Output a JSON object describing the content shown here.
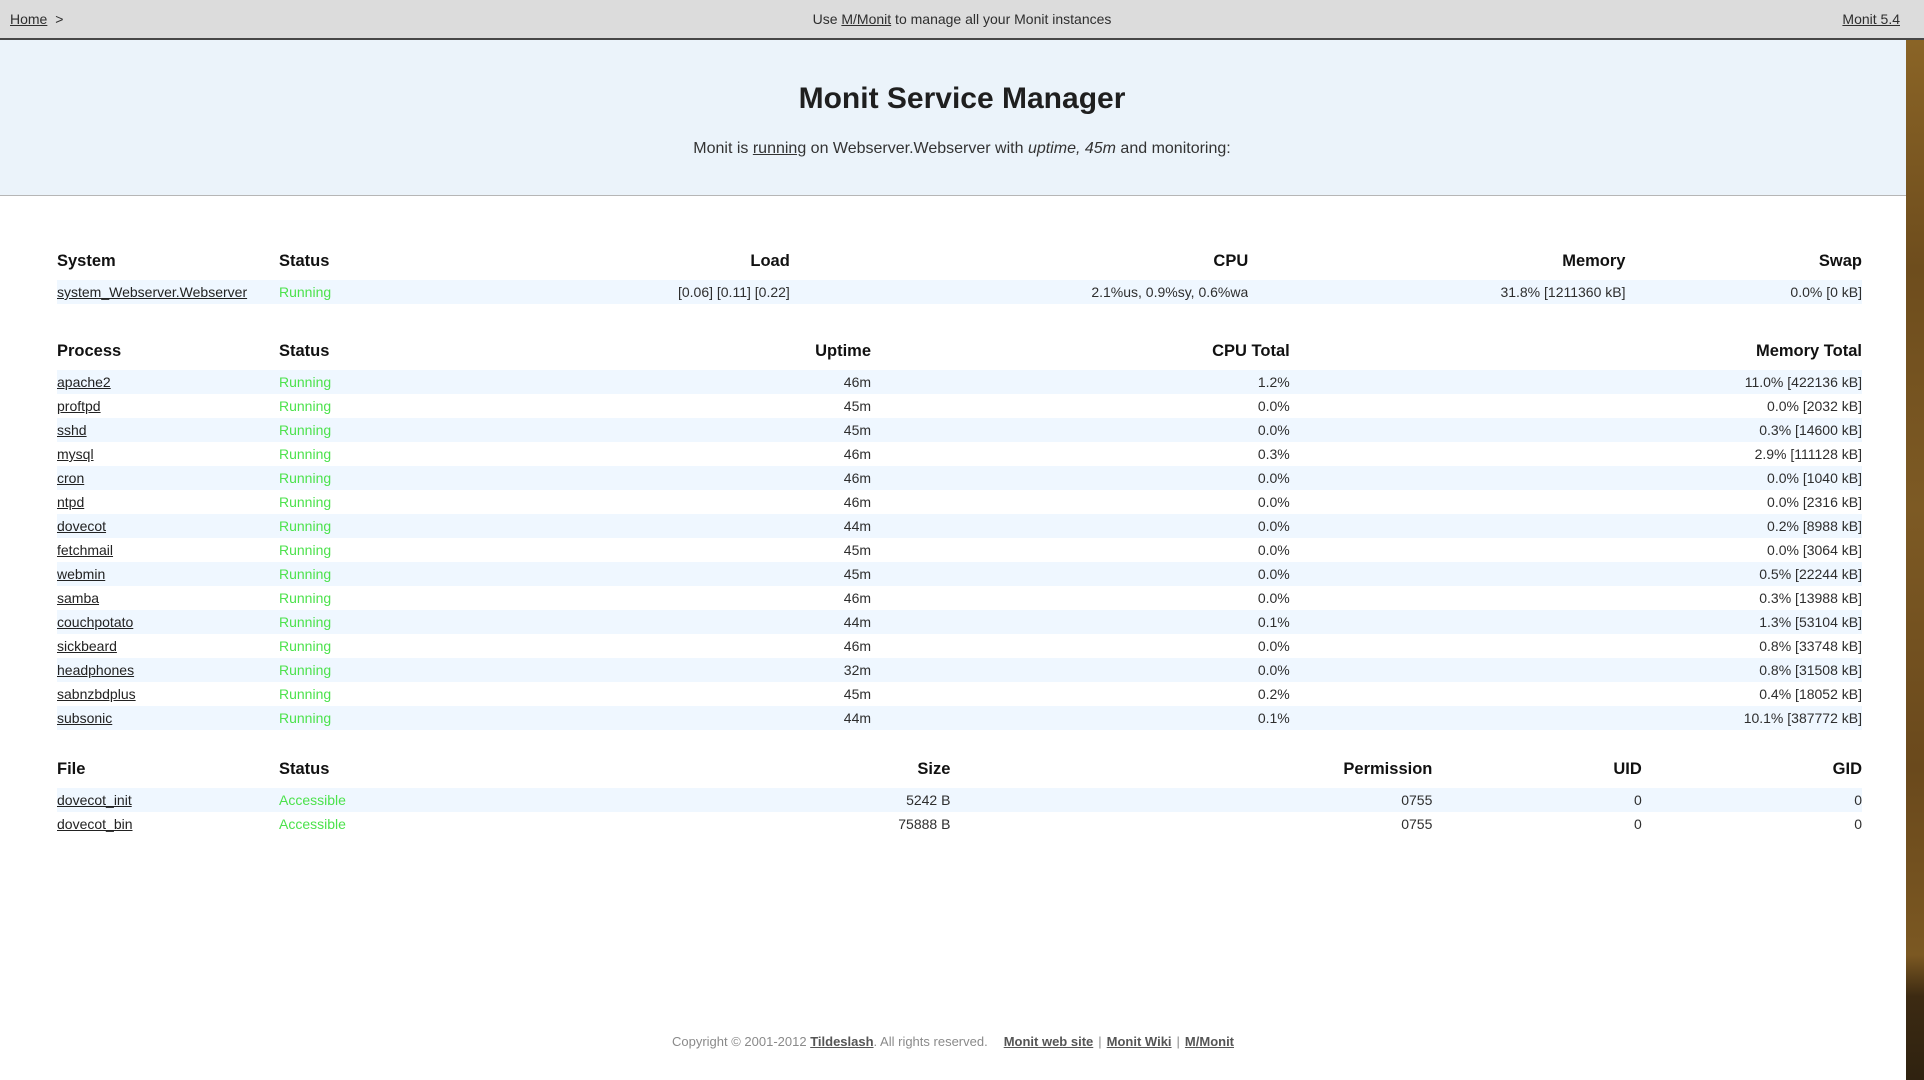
{
  "topbar": {
    "home_label": "Home",
    "separator": ">",
    "center_prefix": "Use ",
    "center_link": "M/Monit",
    "center_suffix": " to manage all your Monit instances",
    "version": "Monit 5.4"
  },
  "header": {
    "title": "Monit Service Manager",
    "subtitle_prefix": "Monit is ",
    "subtitle_link": "running",
    "subtitle_mid": " on Webserver.Webserver with ",
    "subtitle_uptime": "uptime, 45m",
    "subtitle_suffix": " and monitoring:"
  },
  "system_table": {
    "headers": [
      "System",
      "Status",
      "Load",
      "CPU",
      "Memory",
      "Swap"
    ],
    "rows": [
      {
        "name": "system_Webserver.Webserver",
        "status": "Running",
        "load": "[0.06] [0.11] [0.22]",
        "cpu": "2.1%us, 0.9%sy, 0.6%wa",
        "memory": "31.8% [1211360 kB]",
        "swap": "0.0% [0 kB]"
      }
    ]
  },
  "process_table": {
    "headers": [
      "Process",
      "Status",
      "Uptime",
      "CPU Total",
      "Memory Total"
    ],
    "rows": [
      {
        "name": "apache2",
        "status": "Running",
        "uptime": "46m",
        "cpu": "1.2%",
        "memory": "11.0% [422136 kB]"
      },
      {
        "name": "proftpd",
        "status": "Running",
        "uptime": "45m",
        "cpu": "0.0%",
        "memory": "0.0% [2032 kB]"
      },
      {
        "name": "sshd",
        "status": "Running",
        "uptime": "45m",
        "cpu": "0.0%",
        "memory": "0.3% [14600 kB]"
      },
      {
        "name": "mysql",
        "status": "Running",
        "uptime": "46m",
        "cpu": "0.3%",
        "memory": "2.9% [111128 kB]"
      },
      {
        "name": "cron",
        "status": "Running",
        "uptime": "46m",
        "cpu": "0.0%",
        "memory": "0.0% [1040 kB]"
      },
      {
        "name": "ntpd",
        "status": "Running",
        "uptime": "46m",
        "cpu": "0.0%",
        "memory": "0.0% [2316 kB]"
      },
      {
        "name": "dovecot",
        "status": "Running",
        "uptime": "44m",
        "cpu": "0.0%",
        "memory": "0.2% [8988 kB]"
      },
      {
        "name": "fetchmail",
        "status": "Running",
        "uptime": "45m",
        "cpu": "0.0%",
        "memory": "0.0% [3064 kB]"
      },
      {
        "name": "webmin",
        "status": "Running",
        "uptime": "45m",
        "cpu": "0.0%",
        "memory": "0.5% [22244 kB]"
      },
      {
        "name": "samba",
        "status": "Running",
        "uptime": "46m",
        "cpu": "0.0%",
        "memory": "0.3% [13988 kB]"
      },
      {
        "name": "couchpotato",
        "status": "Running",
        "uptime": "44m",
        "cpu": "0.1%",
        "memory": "1.3% [53104 kB]"
      },
      {
        "name": "sickbeard",
        "status": "Running",
        "uptime": "46m",
        "cpu": "0.0%",
        "memory": "0.8% [33748 kB]"
      },
      {
        "name": "headphones",
        "status": "Running",
        "uptime": "32m",
        "cpu": "0.0%",
        "memory": "0.8% [31508 kB]"
      },
      {
        "name": "sabnzbdplus",
        "status": "Running",
        "uptime": "45m",
        "cpu": "0.2%",
        "memory": "0.4% [18052 kB]"
      },
      {
        "name": "subsonic",
        "status": "Running",
        "uptime": "44m",
        "cpu": "0.1%",
        "memory": "10.1% [387772 kB]"
      }
    ]
  },
  "file_table": {
    "headers": [
      "File",
      "Status",
      "Size",
      "Permission",
      "UID",
      "GID"
    ],
    "rows": [
      {
        "name": "dovecot_init",
        "status": "Accessible",
        "size": "5242 B",
        "permission": "0755",
        "uid": "0",
        "gid": "0"
      },
      {
        "name": "dovecot_bin",
        "status": "Accessible",
        "size": "75888 B",
        "permission": "0755",
        "uid": "0",
        "gid": "0"
      }
    ]
  },
  "footer": {
    "copyright_prefix": "Copyright © 2001-2012 ",
    "tildeslash_link": "Tildeslash",
    "copyright_suffix": ". All rights reserved.",
    "separator": "|",
    "links": [
      "Monit web site",
      "Monit Wiki",
      "M/Monit"
    ]
  },
  "colors": {
    "status_ok": "#4ce24c",
    "row_highlight": "#eff7ff",
    "topbar_bg": "#dcdcdc",
    "header_bg": "#ebf3fa"
  }
}
